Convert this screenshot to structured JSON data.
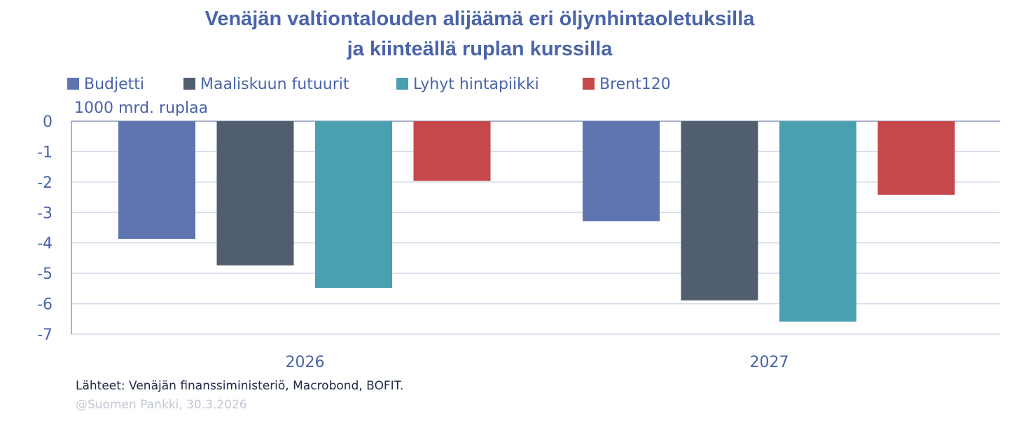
{
  "chart_data": {
    "type": "bar",
    "title": [
      "Venäjän valtiontalouden alijäämä eri öljynhintaoletuksilla",
      "ja kiinteällä ruplan kurssilla"
    ],
    "ylabel": "1000 mrd. ruplaa",
    "categories": [
      "2026",
      "2027"
    ],
    "series": [
      {
        "name": "Budjetti",
        "color": "#5e75b0",
        "values": [
          -3.87,
          -3.29
        ]
      },
      {
        "name": "Maaliskuun futuurit",
        "color": "#515e6f",
        "values": [
          -4.74,
          -5.89
        ]
      },
      {
        "name": "Lyhyt hintapiikki",
        "color": "#48a0b0",
        "values": [
          -5.48,
          -6.59
        ]
      },
      {
        "name": "Brent120",
        "color": "#c5494a",
        "values": [
          -1.96,
          -2.42
        ]
      }
    ],
    "ylim": [
      -7,
      0
    ],
    "yticks": [
      "0",
      "-1",
      "-2",
      "-3",
      "-4",
      "-5",
      "-6",
      "-7"
    ],
    "grid": true,
    "legend": "top"
  },
  "footer": {
    "source": "Lähteet: Venäjän finanssiministeriö, Macrobond, BOFIT.",
    "copyright": "@Suomen Pankki, 30.3.2026"
  }
}
